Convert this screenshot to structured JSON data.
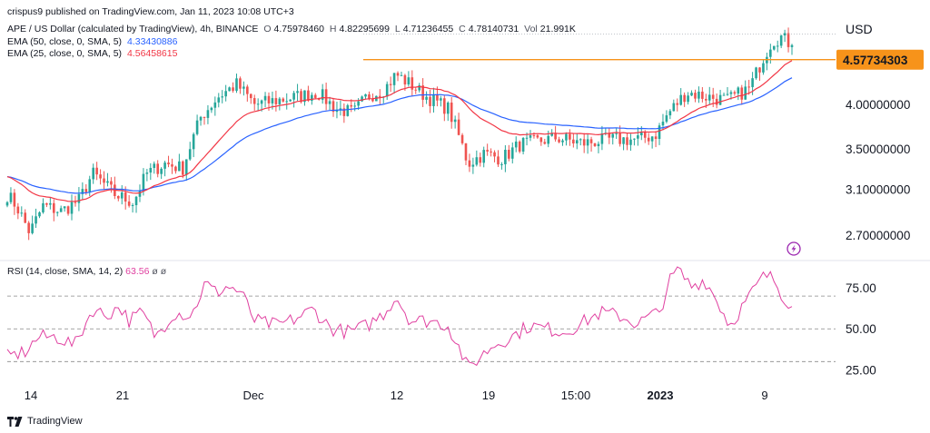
{
  "header": {
    "publish": "crispus9 published on TradingView.com, Jan 11, 2023 10:08 UTC+3",
    "symbol": "APE / US Dollar (calculated by TradingView), 4h, BINANCE",
    "o_label": "O",
    "o_value": "4.75978460",
    "h_label": "H",
    "h_value": "4.82295699",
    "l_label": "L",
    "l_value": "4.71236455",
    "c_label": "C",
    "c_value": "4.78140731",
    "vol_label": "Vol",
    "vol_value": "21.991K",
    "ema50_label": "EMA (50, close, 0, SMA, 5)",
    "ema50_value": "4.33430886",
    "ema25_label": "EMA (25, close, 0, SMA, 5)",
    "ema25_value": "4.56458615",
    "rsi_label": "RSI (14, close, SMA, 14, 2)",
    "rsi_value": "63.56",
    "rsi_na1": "ø",
    "rsi_na2": "ø",
    "currency": "USD"
  },
  "footer": {
    "brand": "TradingView"
  },
  "colors": {
    "up": "#26a69a",
    "down": "#ef5350",
    "ema50": "#2962ff",
    "ema25": "#f23645",
    "resistance": "#f7931a",
    "rsi": "#e040a0",
    "grid": "#888888"
  },
  "icons": [
    "lightning-icon",
    "tradingview-logo-icon"
  ],
  "chart_data": [
    {
      "type": "candlestick",
      "title": "APE / US Dollar (calculated by TradingView), 4h, BINANCE",
      "yscale": "log",
      "ylim": [
        2.55,
        5.3
      ],
      "y_ticks": [
        "4.00000000",
        "3.50000000",
        "3.10000000",
        "2.70000000"
      ],
      "x_ticks": [
        "14",
        "21",
        "Dec",
        "12",
        "19",
        "15:00",
        "2023",
        "9"
      ],
      "resistance_level": 4.57734303,
      "resistance_label": "4.57734303",
      "last_close": 4.78140731,
      "ema50_last": 4.33430886,
      "ema25_last": 4.56458615,
      "close_anchors": [
        [
          0,
          3.05
        ],
        [
          10,
          2.95
        ],
        [
          25,
          2.72
        ],
        [
          40,
          2.95
        ],
        [
          60,
          2.9
        ],
        [
          80,
          3.0
        ],
        [
          95,
          3.25
        ],
        [
          120,
          3.05
        ],
        [
          140,
          2.98
        ],
        [
          155,
          3.25
        ],
        [
          175,
          3.35
        ],
        [
          195,
          3.3
        ],
        [
          215,
          3.85
        ],
        [
          235,
          4.1
        ],
        [
          255,
          4.25
        ],
        [
          275,
          4.0
        ],
        [
          300,
          4.05
        ],
        [
          325,
          4.1
        ],
        [
          345,
          4.15
        ],
        [
          365,
          3.95
        ],
        [
          385,
          3.9
        ],
        [
          400,
          4.1
        ],
        [
          420,
          4.2
        ],
        [
          432,
          4.38
        ],
        [
          448,
          4.25
        ],
        [
          465,
          4.1
        ],
        [
          490,
          3.95
        ],
        [
          505,
          3.55
        ],
        [
          512,
          3.35
        ],
        [
          530,
          3.45
        ],
        [
          550,
          3.4
        ],
        [
          570,
          3.55
        ],
        [
          590,
          3.58
        ],
        [
          610,
          3.62
        ],
        [
          640,
          3.56
        ],
        [
          670,
          3.6
        ],
        [
          700,
          3.6
        ],
        [
          720,
          3.65
        ],
        [
          735,
          3.9
        ],
        [
          755,
          4.15
        ],
        [
          775,
          4.1
        ],
        [
          800,
          4.05
        ],
        [
          825,
          4.2
        ],
        [
          840,
          4.6
        ],
        [
          850,
          4.85
        ],
        [
          860,
          4.9
        ],
        [
          872,
          4.78
        ]
      ]
    },
    {
      "type": "line",
      "title": "RSI (14, close, SMA, 14, 2)",
      "ylim": [
        18,
        90
      ],
      "y_ticks": [
        "75.00",
        "50.00",
        "25.00"
      ],
      "levels": [
        70,
        50,
        30
      ],
      "last_value": 63.56,
      "anchors": [
        [
          0,
          33
        ],
        [
          20,
          36
        ],
        [
          35,
          45
        ],
        [
          55,
          45
        ],
        [
          75,
          40
        ],
        [
          95,
          62
        ],
        [
          110,
          58
        ],
        [
          125,
          64
        ],
        [
          135,
          55
        ],
        [
          150,
          60
        ],
        [
          165,
          45
        ],
        [
          185,
          60
        ],
        [
          205,
          58
        ],
        [
          220,
          78
        ],
        [
          232,
          72
        ],
        [
          245,
          76
        ],
        [
          260,
          72
        ],
        [
          275,
          55
        ],
        [
          300,
          52
        ],
        [
          320,
          56
        ],
        [
          340,
          62
        ],
        [
          360,
          50
        ],
        [
          380,
          48
        ],
        [
          400,
          52
        ],
        [
          420,
          60
        ],
        [
          432,
          70
        ],
        [
          448,
          55
        ],
        [
          470,
          55
        ],
        [
          490,
          52
        ],
        [
          505,
          35
        ],
        [
          512,
          25
        ],
        [
          520,
          30
        ],
        [
          540,
          40
        ],
        [
          560,
          45
        ],
        [
          580,
          52
        ],
        [
          600,
          50
        ],
        [
          620,
          48
        ],
        [
          640,
          54
        ],
        [
          660,
          60
        ],
        [
          680,
          58
        ],
        [
          700,
          53
        ],
        [
          715,
          58
        ],
        [
          725,
          60
        ],
        [
          735,
          78
        ],
        [
          745,
          86
        ],
        [
          760,
          76
        ],
        [
          775,
          80
        ],
        [
          790,
          66
        ],
        [
          803,
          52
        ],
        [
          815,
          62
        ],
        [
          825,
          70
        ],
        [
          842,
          83
        ],
        [
          852,
          80
        ],
        [
          862,
          70
        ],
        [
          872,
          63.56
        ]
      ]
    }
  ]
}
